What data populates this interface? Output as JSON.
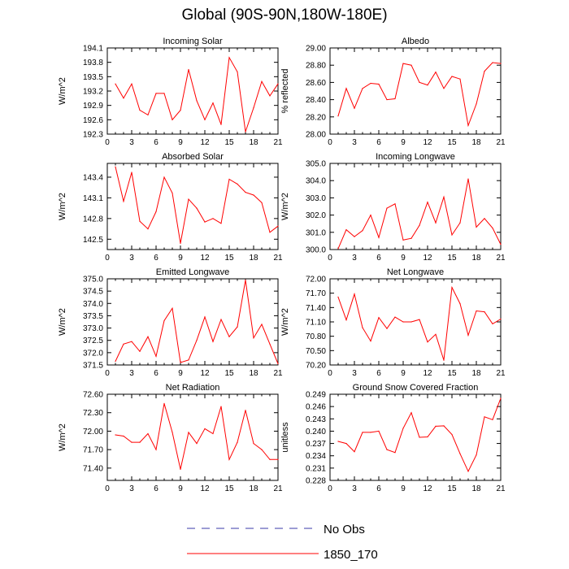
{
  "title": "Global (90S-90N,180W-180E)",
  "colors": {
    "line": "#ff0000",
    "no_obs": "#3a3aa8",
    "axis": "#000000"
  },
  "legend": [
    {
      "label": "No Obs",
      "style": "dashed",
      "color": "#3a3aa8"
    },
    {
      "label": "1850_170",
      "style": "solid",
      "color": "#ff0000"
    }
  ],
  "chart_data": [
    {
      "type": "line",
      "title": "Incoming Solar",
      "ylabel": "W/m^2",
      "xlim": [
        0,
        21
      ],
      "xticks": [
        "0",
        "3",
        "6",
        "9",
        "12",
        "15",
        "18",
        "21"
      ],
      "ylim": [
        192.3,
        194.1
      ],
      "yticks": [
        "192.3",
        "192.6",
        "192.9",
        "193.2",
        "193.5",
        "193.8",
        "194.1"
      ],
      "series": [
        {
          "x": [
            1,
            2,
            3,
            4,
            5,
            6,
            7,
            8,
            9,
            10,
            11,
            12,
            13,
            14,
            15,
            16,
            17,
            18,
            19,
            20,
            21
          ],
          "values": [
            193.35,
            193.05,
            193.35,
            192.8,
            192.7,
            193.15,
            193.15,
            192.6,
            192.8,
            193.65,
            193.0,
            192.6,
            192.95,
            192.5,
            193.9,
            193.6,
            192.35,
            192.85,
            193.4,
            193.1,
            193.35
          ]
        }
      ]
    },
    {
      "type": "line",
      "title": "Albedo",
      "ylabel": "% reflected",
      "xlim": [
        0,
        21
      ],
      "xticks": [
        "0",
        "3",
        "6",
        "9",
        "12",
        "15",
        "18",
        "21"
      ],
      "ylim": [
        28.0,
        29.0
      ],
      "yticks": [
        "28.00",
        "28.20",
        "28.40",
        "28.60",
        "28.80",
        "29.00"
      ],
      "series": [
        {
          "x": [
            1,
            2,
            3,
            4,
            5,
            6,
            7,
            8,
            9,
            10,
            11,
            12,
            13,
            14,
            15,
            16,
            17,
            18,
            19,
            20,
            21
          ],
          "values": [
            28.21,
            28.53,
            28.3,
            28.53,
            28.59,
            28.58,
            28.4,
            28.41,
            28.82,
            28.8,
            28.6,
            28.57,
            28.72,
            28.53,
            28.67,
            28.64,
            28.1,
            28.35,
            28.73,
            28.83,
            28.82
          ]
        }
      ]
    },
    {
      "type": "line",
      "title": "Absorbed Solar",
      "ylabel": "W/m^2",
      "xlim": [
        0,
        21
      ],
      "xticks": [
        "0",
        "3",
        "6",
        "9",
        "12",
        "15",
        "18",
        "21"
      ],
      "ylim": [
        142.35,
        143.6
      ],
      "yticks": [
        "142.5",
        "142.8",
        "143.1",
        "143.4"
      ],
      "series": [
        {
          "x": [
            1,
            2,
            3,
            4,
            5,
            6,
            7,
            8,
            9,
            10,
            11,
            12,
            13,
            14,
            15,
            16,
            17,
            18,
            19,
            20,
            21
          ],
          "values": [
            143.55,
            143.05,
            143.47,
            142.76,
            142.65,
            142.9,
            143.4,
            143.17,
            142.44,
            143.08,
            142.95,
            142.75,
            142.8,
            142.73,
            143.37,
            143.3,
            143.18,
            143.14,
            143.03,
            142.6,
            142.69
          ]
        }
      ]
    },
    {
      "type": "line",
      "title": "Incoming Longwave",
      "ylabel": "W/m^2",
      "xlim": [
        0,
        21
      ],
      "xticks": [
        "0",
        "3",
        "6",
        "9",
        "12",
        "15",
        "18",
        "21"
      ],
      "ylim": [
        300.0,
        305.0
      ],
      "yticks": [
        "300.0",
        "301.0",
        "302.0",
        "303.0",
        "304.0",
        "305.0"
      ],
      "series": [
        {
          "x": [
            1,
            2,
            3,
            4,
            5,
            6,
            7,
            8,
            9,
            10,
            11,
            12,
            13,
            14,
            15,
            16,
            17,
            18,
            19,
            20,
            21
          ],
          "values": [
            300.05,
            301.15,
            300.75,
            301.1,
            302.0,
            300.7,
            302.4,
            302.65,
            300.55,
            300.65,
            301.4,
            302.75,
            301.55,
            303.05,
            300.85,
            301.55,
            304.1,
            301.3,
            301.8,
            301.25,
            300.3
          ]
        }
      ]
    },
    {
      "type": "line",
      "title": "Emitted Longwave",
      "ylabel": "W/m^2",
      "xlim": [
        0,
        21
      ],
      "xticks": [
        "0",
        "3",
        "6",
        "9",
        "12",
        "15",
        "18",
        "21"
      ],
      "ylim": [
        371.5,
        375.0
      ],
      "yticks": [
        "371.5",
        "372.0",
        "372.5",
        "373.0",
        "373.5",
        "374.0",
        "374.5",
        "375.0"
      ],
      "series": [
        {
          "x": [
            1,
            2,
            3,
            4,
            5,
            6,
            7,
            8,
            9,
            10,
            11,
            12,
            13,
            14,
            15,
            16,
            17,
            18,
            19,
            20,
            21
          ],
          "values": [
            371.65,
            372.35,
            372.45,
            372.05,
            372.65,
            371.85,
            373.3,
            373.8,
            371.6,
            371.7,
            372.5,
            373.45,
            372.45,
            373.35,
            372.65,
            373.05,
            374.95,
            372.6,
            373.15,
            372.35,
            371.55
          ]
        }
      ]
    },
    {
      "type": "line",
      "title": "Net Longwave",
      "ylabel": "W/m^2",
      "xlim": [
        0,
        21
      ],
      "xticks": [
        "0",
        "3",
        "6",
        "9",
        "12",
        "15",
        "18",
        "21"
      ],
      "ylim": [
        70.2,
        72.0
      ],
      "yticks": [
        "70.20",
        "70.50",
        "70.80",
        "71.10",
        "71.40",
        "71.70",
        "72.00"
      ],
      "series": [
        {
          "x": [
            1,
            2,
            3,
            4,
            5,
            6,
            7,
            8,
            9,
            10,
            11,
            12,
            13,
            14,
            15,
            16,
            17,
            18,
            19,
            20,
            21
          ],
          "values": [
            71.62,
            71.14,
            71.68,
            70.98,
            70.7,
            71.19,
            70.96,
            71.2,
            71.1,
            71.1,
            71.15,
            70.68,
            70.84,
            70.3,
            71.82,
            71.48,
            70.82,
            71.33,
            71.31,
            71.06,
            71.16
          ]
        }
      ]
    },
    {
      "type": "line",
      "title": "Net Radiation",
      "ylabel": "W/m^2",
      "xlim": [
        0,
        21
      ],
      "xticks": [
        "0",
        "3",
        "6",
        "9",
        "12",
        "15",
        "18",
        "21"
      ],
      "ylim": [
        71.2,
        72.6
      ],
      "yticks": [
        "71.40",
        "71.70",
        "72.00",
        "72.30",
        "72.60"
      ],
      "series": [
        {
          "x": [
            1,
            2,
            3,
            4,
            5,
            6,
            7,
            8,
            9,
            10,
            11,
            12,
            13,
            14,
            15,
            16,
            17,
            18,
            19,
            20,
            21
          ],
          "values": [
            71.94,
            71.92,
            71.82,
            71.82,
            71.96,
            71.7,
            72.45,
            71.98,
            71.38,
            71.98,
            71.8,
            72.04,
            71.96,
            72.4,
            71.54,
            71.82,
            72.34,
            71.8,
            71.7,
            71.54,
            71.54
          ]
        }
      ]
    },
    {
      "type": "line",
      "title": "Ground Snow Covered Fraction",
      "ylabel": "unitless",
      "xlim": [
        0,
        21
      ],
      "xticks": [
        "0",
        "3",
        "6",
        "9",
        "12",
        "15",
        "18",
        "21"
      ],
      "ylim": [
        0.228,
        0.249
      ],
      "yticks": [
        "0.228",
        "0.231",
        "0.234",
        "0.237",
        "0.240",
        "0.243",
        "0.246",
        "0.249"
      ],
      "series": [
        {
          "x": [
            1,
            2,
            3,
            4,
            5,
            6,
            7,
            8,
            9,
            10,
            11,
            12,
            13,
            14,
            15,
            16,
            17,
            18,
            19,
            20,
            21
          ],
          "values": [
            0.2375,
            0.237,
            0.235,
            0.2397,
            0.2397,
            0.24,
            0.2355,
            0.2348,
            0.2407,
            0.2445,
            0.2385,
            0.2386,
            0.2412,
            0.2413,
            0.2392,
            0.2345,
            0.2302,
            0.2342,
            0.2435,
            0.2428,
            0.248
          ]
        }
      ]
    }
  ]
}
